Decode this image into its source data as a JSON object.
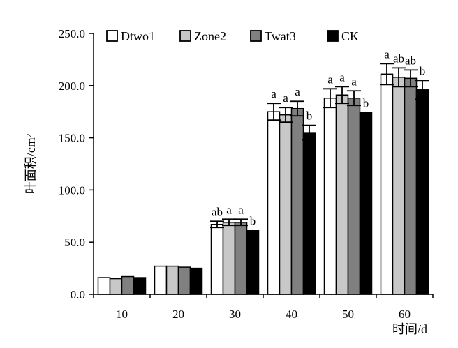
{
  "chart_data": {
    "type": "bar",
    "title": "",
    "xlabel": "时间/d",
    "ylabel": "叶面积/cm²",
    "ylim": [
      0,
      250
    ],
    "yticks": [
      0,
      50,
      100,
      150,
      200,
      250
    ],
    "ytick_labels": [
      "0.0",
      "50.0",
      "100.0",
      "150.0",
      "200.0",
      "250.0"
    ],
    "categories": [
      "10",
      "20",
      "30",
      "40",
      "50",
      "60"
    ],
    "legend_position": "top",
    "grid": false,
    "series": [
      {
        "name": "Dtwo1",
        "color": "#ffffff",
        "values": [
          16,
          27,
          67,
          175,
          188,
          211
        ],
        "errors": [
          0,
          0,
          3,
          8,
          9,
          10
        ],
        "sig": [
          "",
          "",
          "ab",
          "a",
          "a",
          "a"
        ]
      },
      {
        "name": "Zone2",
        "color": "#c8c8c8",
        "values": [
          15,
          27,
          69,
          172,
          191,
          208
        ],
        "errors": [
          0,
          0,
          3,
          7,
          8,
          9
        ],
        "sig": [
          "",
          "",
          "a",
          "a",
          "a",
          "ab"
        ]
      },
      {
        "name": "Twat3",
        "color": "#808080",
        "values": [
          17,
          26,
          69,
          178,
          188,
          207
        ],
        "errors": [
          0,
          0,
          3,
          7,
          7,
          8
        ],
        "sig": [
          "",
          "",
          "a",
          "a",
          "a",
          "ab"
        ]
      },
      {
        "name": "CK",
        "color": "#000000",
        "values": [
          16,
          25,
          61,
          155,
          174,
          196
        ],
        "errors": [
          0,
          0,
          0,
          7,
          0,
          9
        ],
        "sig": [
          "",
          "",
          "b",
          "b",
          "b",
          "b"
        ]
      }
    ]
  }
}
